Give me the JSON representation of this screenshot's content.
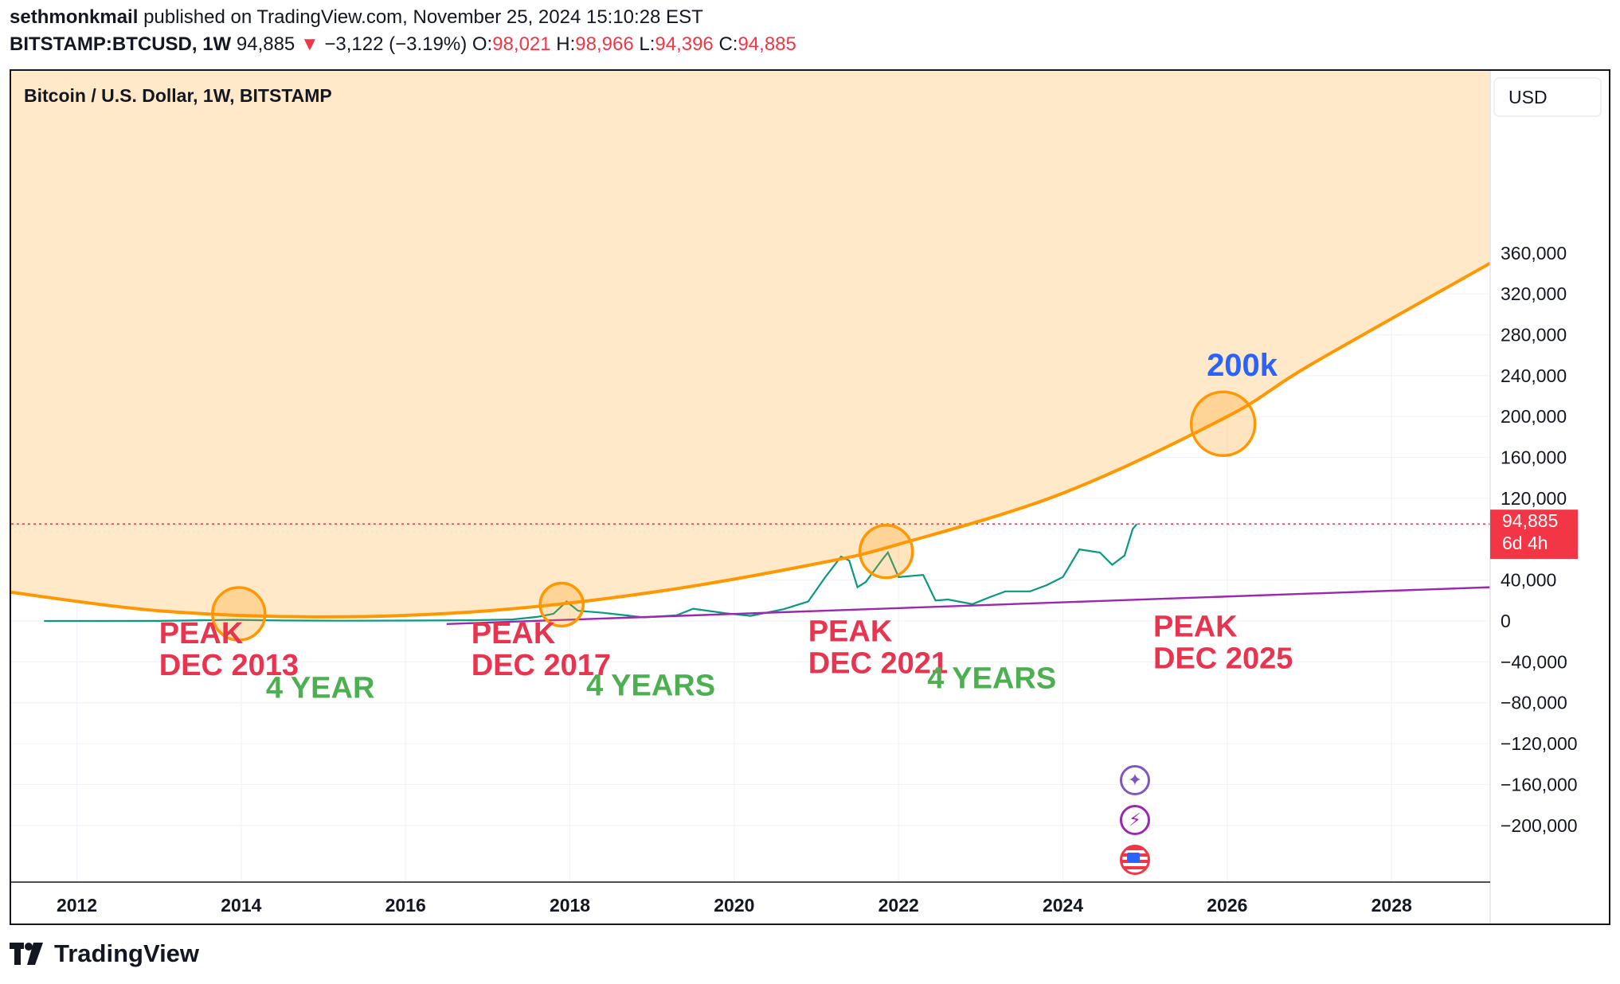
{
  "header": {
    "author": "sethmonkmail",
    "published_text": "published on TradingView.com, November 25, 2024 15:10:28 EST",
    "symbol": "BITSTAMP:BTCUSD, 1W",
    "last": "94,885",
    "change": "−3,122 (−3.19%)",
    "open_label": "O:",
    "open": "98,021",
    "high_label": "H:",
    "high": "98,966",
    "low_label": "L:",
    "low": "94,396",
    "close_label": "C:",
    "close": "94,885"
  },
  "chart_title": "Bitcoin / U.S. Dollar, 1W, BITSTAMP",
  "currency_button": "USD",
  "price_tag": {
    "price": "94,885",
    "countdown": "6d 4h",
    "value": 94885
  },
  "footer_brand": "TradingView",
  "chart_data": {
    "type": "line",
    "x_ticks": [
      "2012",
      "2014",
      "2016",
      "2018",
      "2020",
      "2022",
      "2024",
      "2026",
      "2028"
    ],
    "y_ticks": [
      "360,000",
      "320,000",
      "280,000",
      "240,000",
      "200,000",
      "160,000",
      "120,000",
      "40,000",
      "0",
      "−40,000",
      "−80,000",
      "−120,000",
      "−160,000",
      "−200,000"
    ],
    "y_range": [
      -200000,
      380000
    ],
    "x_range": [
      2011.2,
      2029.2
    ],
    "grid": true,
    "series": [
      {
        "points": [
          [
            2011.6,
            0
          ],
          [
            2013.0,
            100
          ],
          [
            2013.9,
            1100
          ],
          [
            2014.5,
            500
          ],
          [
            2015.2,
            250
          ],
          [
            2016.0,
            400
          ],
          [
            2016.8,
            700
          ],
          [
            2017.3,
            1500
          ],
          [
            2017.6,
            4000
          ],
          [
            2017.8,
            7000
          ],
          [
            2017.96,
            19000
          ],
          [
            2018.1,
            10000
          ],
          [
            2018.4,
            8000
          ],
          [
            2018.9,
            3500
          ],
          [
            2019.3,
            5500
          ],
          [
            2019.5,
            12000
          ],
          [
            2019.9,
            7500
          ],
          [
            2020.2,
            5000
          ],
          [
            2020.6,
            11500
          ],
          [
            2020.9,
            19000
          ],
          [
            2021.1,
            42000
          ],
          [
            2021.3,
            63000
          ],
          [
            2021.4,
            59000
          ],
          [
            2021.5,
            33000
          ],
          [
            2021.6,
            38000
          ],
          [
            2021.8,
            60000
          ],
          [
            2021.87,
            67000
          ],
          [
            2022.0,
            43000
          ],
          [
            2022.3,
            45000
          ],
          [
            2022.45,
            20000
          ],
          [
            2022.6,
            21000
          ],
          [
            2022.9,
            16500
          ],
          [
            2023.1,
            23000
          ],
          [
            2023.3,
            29000
          ],
          [
            2023.6,
            29000
          ],
          [
            2023.8,
            35000
          ],
          [
            2024.0,
            43000
          ],
          [
            2024.2,
            70000
          ],
          [
            2024.45,
            67000
          ],
          [
            2024.6,
            55000
          ],
          [
            2024.75,
            64000
          ],
          [
            2024.85,
            90000
          ],
          [
            2024.9,
            94885
          ]
        ]
      }
    ],
    "annotations": {
      "parabola": [
        [
          2011.2,
          28000
        ],
        [
          2013.0,
          10000
        ],
        [
          2015.0,
          4000
        ],
        [
          2017.0,
          10000
        ],
        [
          2019.0,
          28000
        ],
        [
          2021.0,
          56000
        ],
        [
          2022.0,
          75000
        ],
        [
          2024.0,
          125000
        ],
        [
          2026.0,
          200000
        ],
        [
          2027.0,
          250000
        ],
        [
          2029.2,
          350000
        ]
      ],
      "trendline": [
        [
          2016.5,
          -3000
        ],
        [
          2029.2,
          33000
        ]
      ],
      "circles": [
        [
          2013.97,
          7000
        ],
        [
          2017.9,
          16000
        ],
        [
          2021.85,
          68000
        ],
        [
          2025.95,
          193000
        ]
      ],
      "labels": [
        {
          "line1": "PEAK",
          "line2": "DEC 2013",
          "x": 2013.0,
          "y": -22000
        },
        {
          "line1": "PEAK",
          "line2": "DEC 2017",
          "x": 2016.8,
          "y": -22000
        },
        {
          "line1": "PEAK",
          "line2": "DEC 2021",
          "x": 2020.9,
          "y": -20000
        },
        {
          "line1": "PEAK",
          "line2": "DEC 2025",
          "x": 2025.1,
          "y": -15000
        },
        {
          "text": "4 YEAR",
          "x": 2014.3,
          "y": -75000
        },
        {
          "text": "4 YEARS",
          "x": 2018.2,
          "y": -73000
        },
        {
          "text": "4 YEARS",
          "x": 2022.35,
          "y": -66000
        },
        {
          "text": "200k",
          "x": 2025.75,
          "y": 240000
        }
      ]
    },
    "colors": {
      "parabola": "#ff9800",
      "fill": "#ffe9c8",
      "trendline": "#9c27b0",
      "up": "#089981",
      "down": "#f23645",
      "peak_text": "#e8344e",
      "years_text": "#4caf50",
      "target_text": "#2962ff"
    }
  }
}
